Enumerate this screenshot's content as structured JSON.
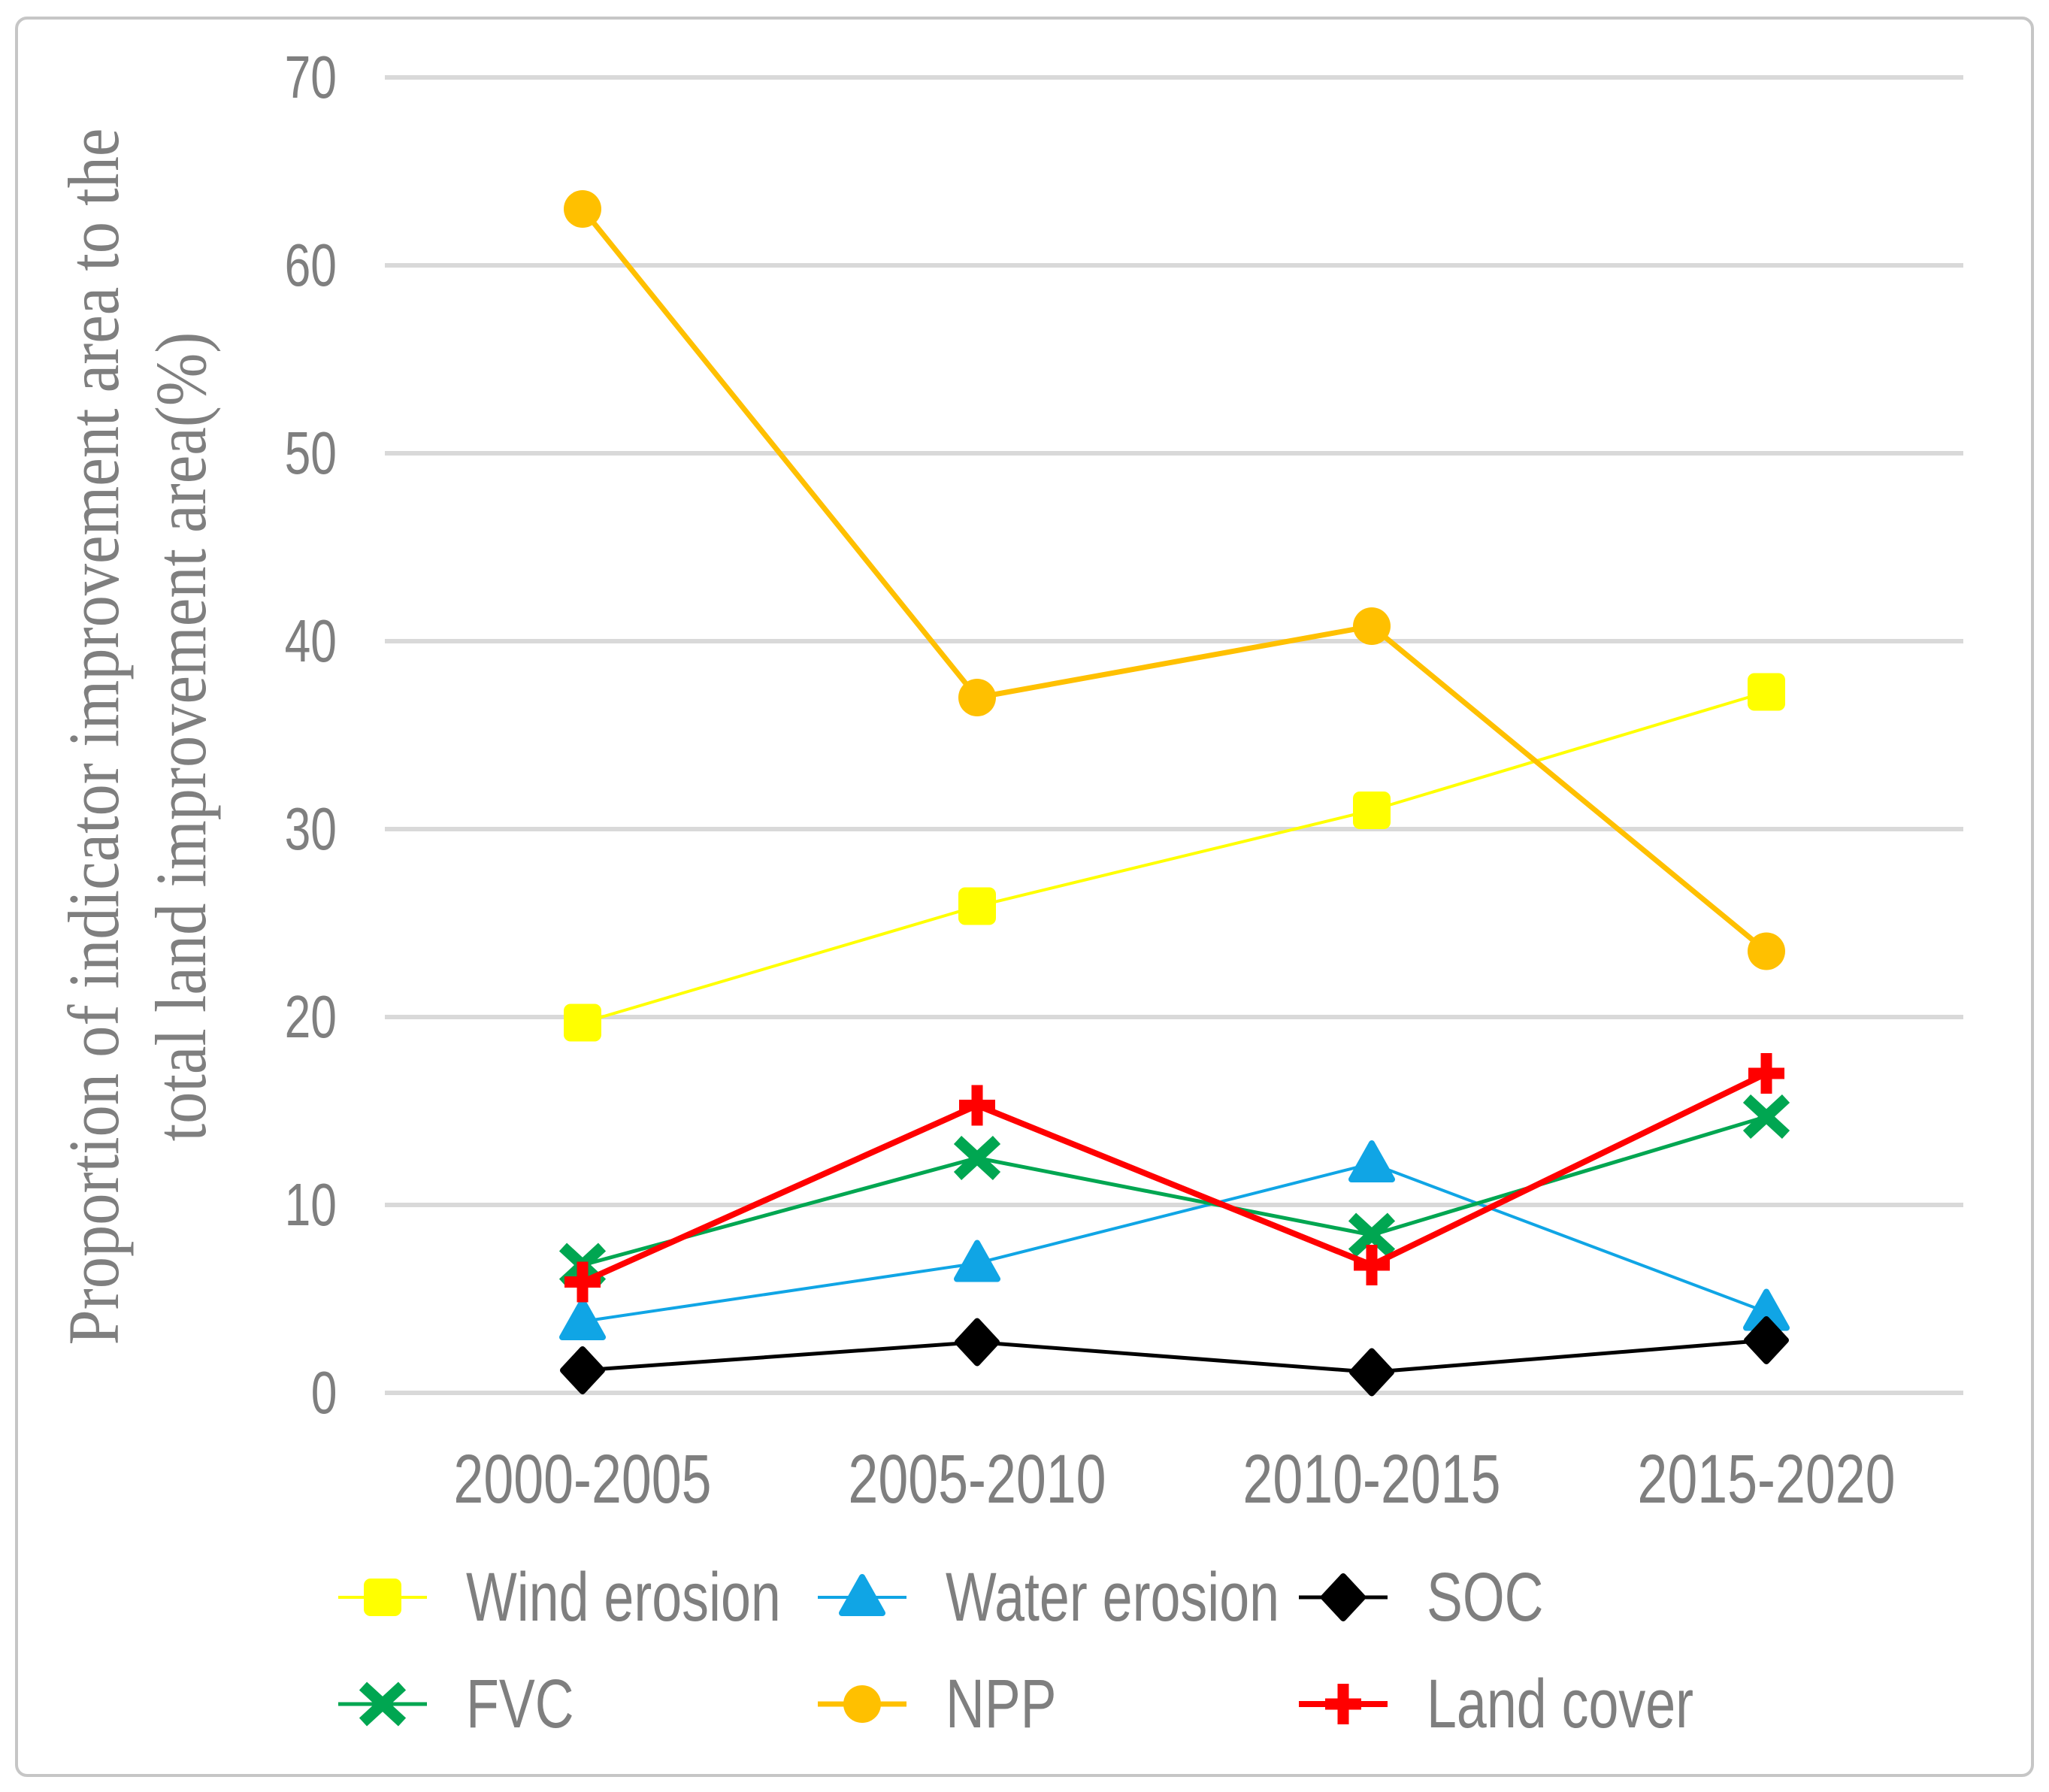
{
  "y_axis": {
    "title_line1": "Proportion of indicator improvement area to the",
    "title_line2": "total land improvement area(%)",
    "ticks": [
      0,
      10,
      20,
      30,
      40,
      50,
      60,
      70
    ]
  },
  "chart_data": {
    "type": "line",
    "categories": [
      "2000-2005",
      "2005-2010",
      "2010-2015",
      "2015-2020"
    ],
    "series": [
      {
        "name": "Wind erosion",
        "color": "#FFFF00",
        "marker": "square",
        "line_width": 4,
        "values": [
          19.7,
          25.9,
          31.0,
          37.3
        ]
      },
      {
        "name": "Water erosion",
        "color": "#10A5E5",
        "marker": "triangle",
        "line_width": 4,
        "values": [
          3.8,
          6.9,
          12.2,
          4.3
        ]
      },
      {
        "name": "SOC",
        "color": "#000000",
        "marker": "diamond",
        "line_width": 5,
        "values": [
          1.2,
          2.7,
          1.1,
          2.8
        ]
      },
      {
        "name": "FVC",
        "color": "#00A651",
        "marker": "x",
        "line_width": 5,
        "values": [
          6.8,
          12.5,
          8.4,
          14.7
        ]
      },
      {
        "name": "NPP",
        "color": "#FFC000",
        "marker": "circle",
        "line_width": 7,
        "values": [
          63.0,
          37.0,
          40.8,
          23.5
        ]
      },
      {
        "name": "Land cover",
        "color": "#FF0000",
        "marker": "plus",
        "line_width": 8,
        "values": [
          5.9,
          15.3,
          6.8,
          17.0
        ]
      }
    ],
    "ylim": [
      0,
      70
    ],
    "grid": true,
    "legend_position": "bottom",
    "gridline_color": "#D9D9D9",
    "label_color": "#7F7F7F"
  }
}
